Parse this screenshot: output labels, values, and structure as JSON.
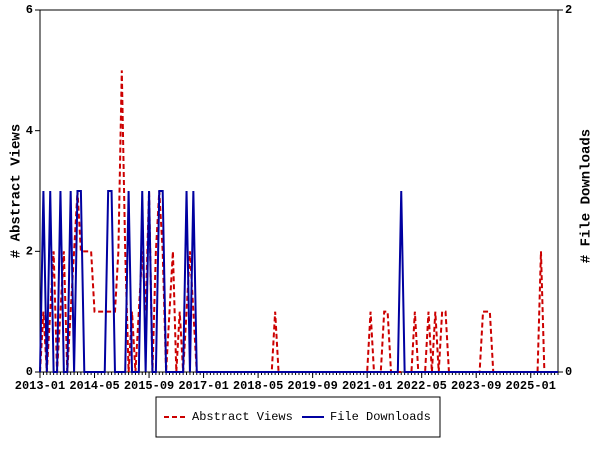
{
  "chart_data": {
    "type": "line",
    "y_label": "# Abstract Views",
    "y2_label": "# File Downloads",
    "x": [
      "2013-01",
      "2013-02",
      "2013-03",
      "2013-04",
      "2013-05",
      "2013-06",
      "2013-07",
      "2013-08",
      "2013-09",
      "2013-10",
      "2013-11",
      "2013-12",
      "2014-01",
      "2014-02",
      "2014-03",
      "2014-04",
      "2014-05",
      "2014-06",
      "2014-07",
      "2014-08",
      "2014-09",
      "2014-10",
      "2014-11",
      "2014-12",
      "2015-01",
      "2015-02",
      "2015-03",
      "2015-04",
      "2015-05",
      "2015-06",
      "2015-07",
      "2015-08",
      "2015-09",
      "2015-10",
      "2015-11",
      "2015-12",
      "2016-01",
      "2016-02",
      "2016-03",
      "2016-04",
      "2016-05",
      "2016-06",
      "2016-07",
      "2016-08",
      "2016-09",
      "2016-10",
      "2016-11",
      "2016-12",
      "2017-01",
      "2017-02",
      "2017-03",
      "2017-04",
      "2017-05",
      "2017-06",
      "2017-07",
      "2017-08",
      "2017-09",
      "2017-10",
      "2017-11",
      "2017-12",
      "2018-01",
      "2018-02",
      "2018-03",
      "2018-04",
      "2018-05",
      "2018-06",
      "2018-07",
      "2018-08",
      "2018-09",
      "2018-10",
      "2018-11",
      "2018-12",
      "2019-01",
      "2019-02",
      "2019-03",
      "2019-04",
      "2019-05",
      "2019-06",
      "2019-07",
      "2019-08",
      "2019-09",
      "2019-10",
      "2019-11",
      "2019-12",
      "2020-01",
      "2020-02",
      "2020-03",
      "2020-04",
      "2020-05",
      "2020-06",
      "2020-07",
      "2020-08",
      "2020-09",
      "2020-10",
      "2020-11",
      "2020-12",
      "2021-01",
      "2021-02",
      "2021-03",
      "2021-04",
      "2021-05",
      "2021-06",
      "2021-07",
      "2021-08",
      "2021-09",
      "2021-10",
      "2021-11",
      "2021-12",
      "2022-01",
      "2022-02",
      "2022-03",
      "2022-04",
      "2022-05",
      "2022-06",
      "2022-07",
      "2022-08",
      "2022-09",
      "2022-10",
      "2022-11",
      "2022-12",
      "2023-01",
      "2023-02",
      "2023-03",
      "2023-04",
      "2023-05",
      "2023-06",
      "2023-07",
      "2023-08",
      "2023-09",
      "2023-10",
      "2023-11",
      "2023-12",
      "2024-01",
      "2024-02",
      "2024-03",
      "2024-04",
      "2024-05",
      "2024-06",
      "2024-07",
      "2024-08",
      "2024-09",
      "2024-10",
      "2024-11",
      "2024-12",
      "2025-01",
      "2025-02",
      "2025-03",
      "2025-04",
      "2025-05",
      "2025-06",
      "2025-07",
      "2025-08",
      "2025-09"
    ],
    "xticks": [
      "2013-01",
      "2014-05",
      "2015-09",
      "2017-01",
      "2018-05",
      "2019-09",
      "2021-01",
      "2022-05",
      "2023-09",
      "2025-01"
    ],
    "ylim": [
      0,
      6
    ],
    "yticks": [
      0,
      2,
      4,
      6
    ],
    "y2lim": [
      0,
      2
    ],
    "y2ticks": [
      0,
      2
    ],
    "series": [
      {
        "name": "Abstract Views",
        "color": "#cc0000",
        "dashed": true,
        "values": [
          0,
          1,
          0,
          1,
          2,
          0,
          1,
          2,
          0,
          1,
          2,
          3,
          2,
          2,
          2,
          2,
          1,
          1,
          1,
          1,
          1,
          1,
          1,
          2,
          5,
          2,
          0,
          1,
          0,
          1,
          2,
          1,
          3,
          0,
          2,
          3,
          2,
          0,
          1,
          2,
          0,
          1,
          0,
          1,
          2,
          1,
          0,
          0,
          0,
          0,
          0,
          0,
          0,
          0,
          0,
          0,
          0,
          0,
          0,
          0,
          0,
          0,
          0,
          0,
          0,
          0,
          0,
          0,
          0,
          1,
          0,
          0,
          0,
          0,
          0,
          0,
          0,
          0,
          0,
          0,
          0,
          0,
          0,
          0,
          0,
          0,
          0,
          0,
          0,
          0,
          0,
          0,
          0,
          0,
          0,
          0,
          0,
          1,
          0,
          0,
          0,
          1,
          1,
          0,
          0,
          0,
          0,
          0,
          0,
          0,
          1,
          0,
          0,
          0,
          1,
          0,
          1,
          0,
          1,
          1,
          0,
          0,
          0,
          0,
          0,
          0,
          0,
          0,
          0,
          0,
          1,
          1,
          1,
          0,
          0,
          0,
          0,
          0,
          0,
          0,
          0,
          0,
          0,
          0,
          0,
          0,
          0,
          2,
          0,
          0,
          0,
          0,
          0
        ]
      },
      {
        "name": "File Downloads",
        "color": "#0000a0",
        "dashed": false,
        "axis": "y2",
        "values": [
          0,
          1,
          0,
          1,
          0,
          0,
          1,
          0,
          0,
          1,
          0,
          1,
          1,
          0,
          0,
          0,
          0,
          0,
          0,
          0,
          1,
          1,
          0,
          0,
          0,
          0,
          1,
          0,
          0,
          0,
          1,
          0,
          1,
          0,
          0,
          1,
          1,
          0,
          0,
          0,
          0,
          0,
          0,
          1,
          0,
          1,
          0,
          0,
          0,
          0,
          0,
          0,
          0,
          0,
          0,
          0,
          0,
          0,
          0,
          0,
          0,
          0,
          0,
          0,
          0,
          0,
          0,
          0,
          0,
          0,
          0,
          0,
          0,
          0,
          0,
          0,
          0,
          0,
          0,
          0,
          0,
          0,
          0,
          0,
          0,
          0,
          0,
          0,
          0,
          0,
          0,
          0,
          0,
          0,
          0,
          0,
          0,
          0,
          0,
          0,
          0,
          0,
          0,
          0,
          0,
          0,
          1,
          0,
          0,
          0,
          0,
          0,
          0,
          0,
          0,
          0,
          0,
          0,
          0,
          0,
          0,
          0,
          0,
          0,
          0,
          0,
          0,
          0,
          0,
          0,
          0,
          0,
          0,
          0,
          0,
          0,
          0,
          0,
          0,
          0,
          0,
          0,
          0,
          0,
          0,
          0,
          0,
          0,
          0,
          0,
          0,
          0,
          0
        ]
      }
    ]
  }
}
